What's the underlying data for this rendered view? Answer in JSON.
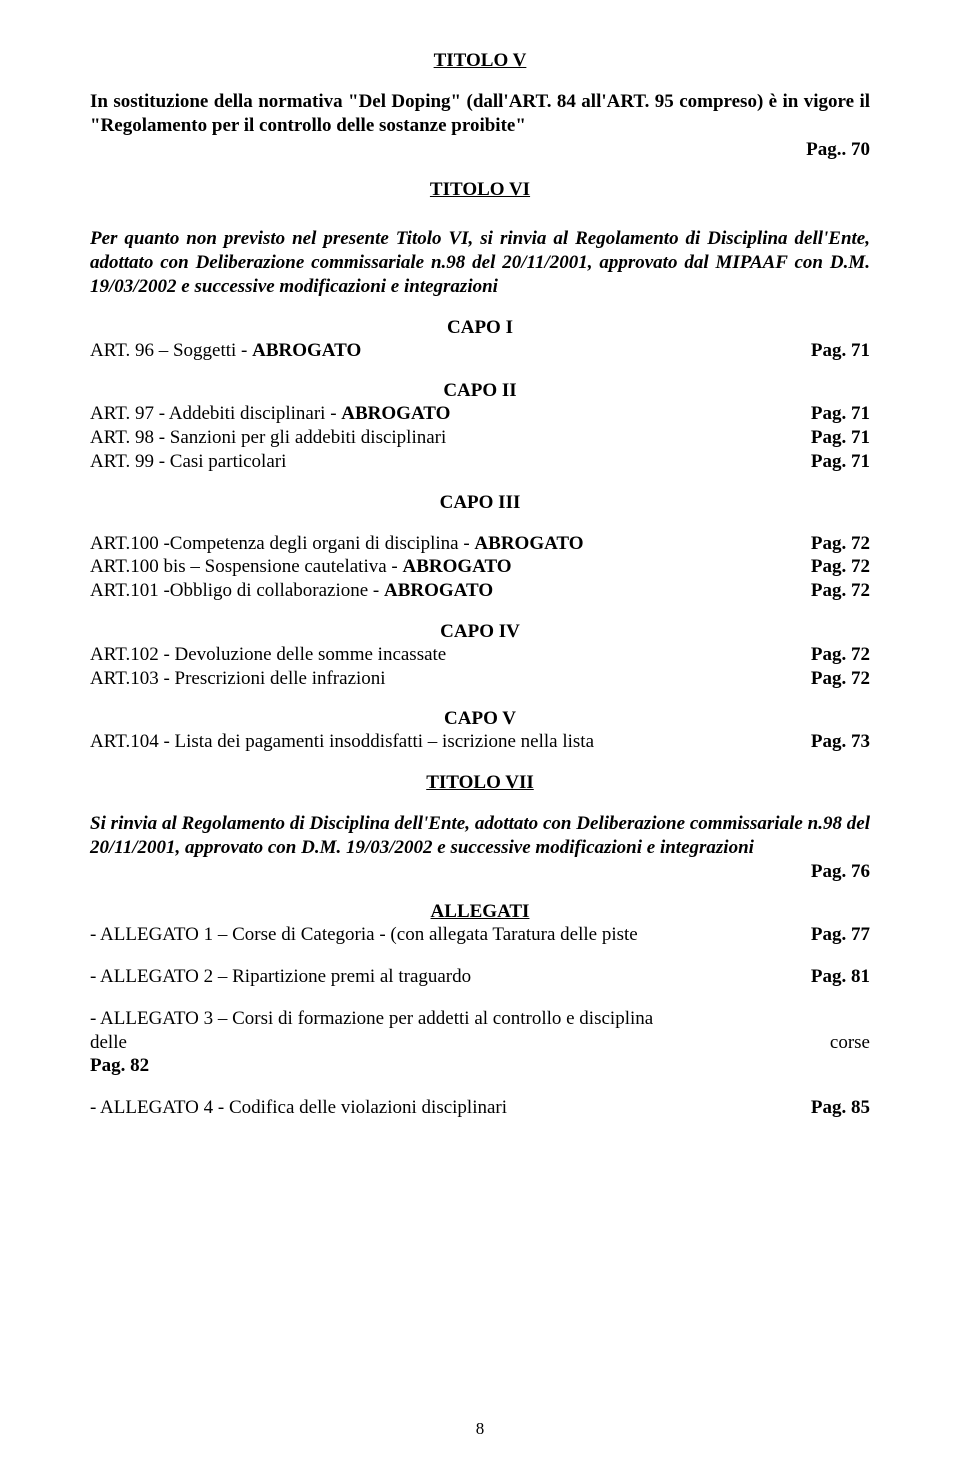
{
  "titolo_v": {
    "heading": "TITOLO V",
    "body": "In sostituzione della normativa \"Del Doping\" (dall'ART. 84 all'ART. 95 compreso) è in vigore il \"Regolamento per il controllo delle sostanze proibite\"",
    "page": "Pag.. 70"
  },
  "titolo_vi": {
    "heading": "TITOLO VI",
    "body": "Per quanto non previsto nel presente Titolo VI, si rinvia al Regolamento di Disciplina dell'Ente, adottato con Deliberazione commissariale n.98 del 20/11/2001, approvato dal MIPAAF con D.M. 19/03/2002 e successive modificazioni e integrazioni"
  },
  "capo1": {
    "title": "CAPO I",
    "rows": [
      {
        "left_pre": "ART. 96 – Soggetti - ",
        "left_bold": "ABROGATO",
        "right": "Pag. 71"
      }
    ]
  },
  "capo2": {
    "title": "CAPO II",
    "rows": [
      {
        "left_pre": "ART. 97 - Addebiti disciplinari - ",
        "left_bold": "ABROGATO",
        "right": "Pag. 71"
      },
      {
        "left_pre": "ART. 98 - Sanzioni per gli addebiti disciplinari",
        "left_bold": "",
        "right": "Pag. 71"
      },
      {
        "left_pre": "ART. 99 - Casi particolari",
        "left_bold": "",
        "right": "Pag. 71"
      }
    ]
  },
  "capo3": {
    "title": "CAPO III",
    "rows": [
      {
        "left_pre": "ART.100 -Competenza degli organi di disciplina -  ",
        "left_bold": "ABROGATO",
        "right": "Pag. 72"
      },
      {
        "left_pre": "ART.100 bis – Sospensione cautelativa - ",
        "left_bold": "ABROGATO",
        "right": "Pag. 72"
      },
      {
        "left_pre": "ART.101 -Obbligo di collaborazione - ",
        "left_bold": "ABROGATO",
        "right": "Pag. 72"
      }
    ]
  },
  "capo4": {
    "title": "CAPO IV",
    "rows": [
      {
        "left_pre": "ART.102 - Devoluzione delle somme incassate",
        "left_bold": "",
        "right": "Pag. 72"
      },
      {
        "left_pre": "ART.103 - Prescrizioni delle infrazioni",
        "left_bold": "",
        "right": "Pag. 72"
      }
    ]
  },
  "capo5": {
    "title": "CAPO V",
    "rows": [
      {
        "left_pre": "ART.104 - Lista dei pagamenti insoddisfatti – iscrizione nella lista",
        "left_bold": "",
        "right": "Pag. 73"
      }
    ]
  },
  "titolo_vii": {
    "heading": "TITOLO VII",
    "body": "Si rinvia al Regolamento di Disciplina dell'Ente, adottato con Deliberazione commissariale n.98 del 20/11/2001, approvato con D.M. 19/03/2002 e successive modificazioni e integrazioni",
    "page": "Pag. 76"
  },
  "allegati": {
    "heading": "ALLEGATI",
    "rows": [
      {
        "left_pre": "- ALLEGATO 1 – Corse di Categoria - (con allegata Taratura delle piste",
        "right": "Pag. 77"
      },
      {
        "left_pre": "- ALLEGATO 2 – Ripartizione premi al traguardo",
        "right": "Pag. 81"
      }
    ],
    "a3_line1": "- ALLEGATO 3 – Corsi di formazione per addetti al controllo e disciplina",
    "a3_delle": "delle",
    "a3_corse": "corse",
    "a3_page": "Pag. 82",
    "a4": {
      "left_pre": "- ALLEGATO 4 - Codifica delle violazioni disciplinari",
      "right": "Pag. 85"
    }
  },
  "page_number": "8"
}
